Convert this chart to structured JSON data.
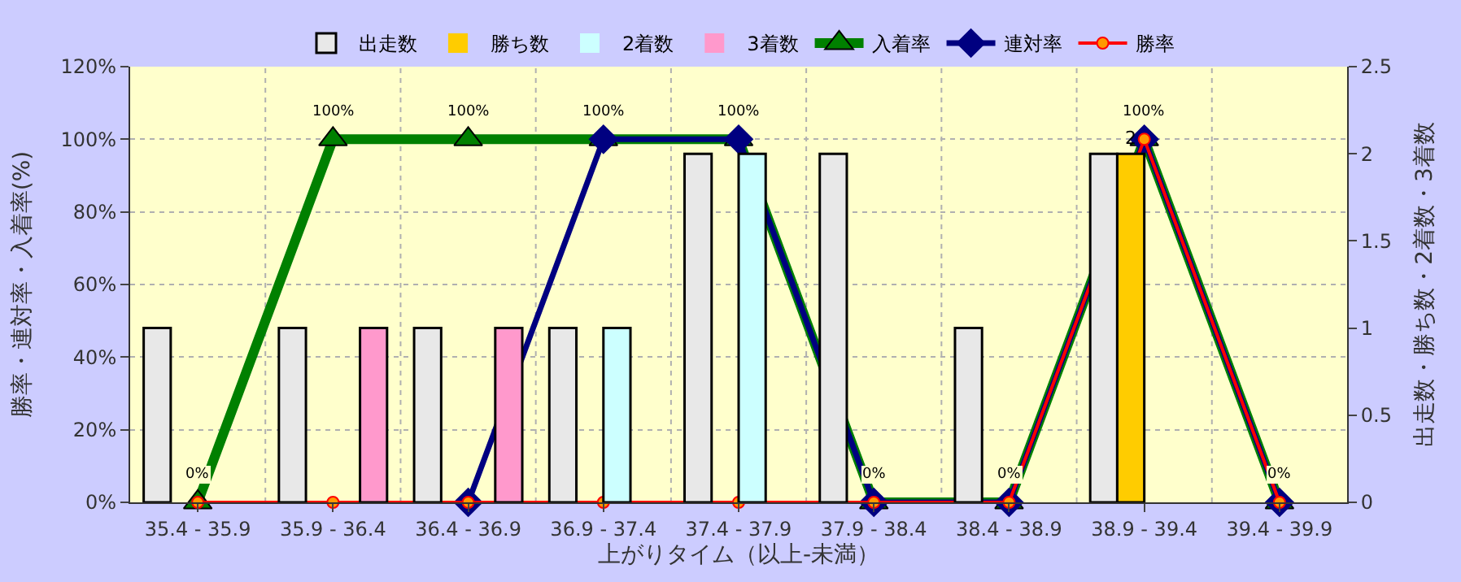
{
  "chart_data": {
    "type": "bar",
    "categories": [
      "35.4 - 35.9",
      "35.9 - 36.4",
      "36.4 - 36.9",
      "36.9 - 37.4",
      "37.4 - 37.9",
      "37.9 - 38.4",
      "38.4 - 38.9",
      "38.9 - 39.4",
      "39.4 - 39.9"
    ],
    "series": [
      {
        "name": "出走数",
        "axis": "y2",
        "color": "#e8e8e8",
        "values": [
          1,
          1,
          1,
          1,
          2,
          2,
          1,
          2,
          0
        ]
      },
      {
        "name": "勝ち数",
        "axis": "y2",
        "color": "#ffcc00",
        "values": [
          0,
          0,
          0,
          0,
          0,
          0,
          0,
          2,
          0
        ],
        "value_labels": [
          null,
          null,
          null,
          null,
          null,
          null,
          null,
          "2",
          null
        ]
      },
      {
        "name": "2着数",
        "axis": "y2",
        "color": "#ccffff",
        "values": [
          0,
          0,
          0,
          1,
          2,
          0,
          0,
          0,
          0
        ]
      },
      {
        "name": "3着数",
        "axis": "y2",
        "color": "#ff99cc",
        "values": [
          0,
          1,
          1,
          0,
          0,
          0,
          0,
          0,
          0
        ]
      },
      {
        "name": "入着率",
        "type": "line",
        "marker": "triangle",
        "color": "#008000",
        "values": [
          0,
          100,
          100,
          100,
          100,
          0,
          0,
          100,
          0
        ],
        "value_labels": [
          "0%",
          "100%",
          "100%",
          "100%",
          "100%",
          "0%",
          "0%",
          "100%",
          "0%"
        ]
      },
      {
        "name": "連対率",
        "type": "line",
        "marker": "diamond",
        "color": "#000080",
        "values": [
          null,
          null,
          0,
          100,
          100,
          0,
          0,
          100,
          0
        ]
      },
      {
        "name": "勝率",
        "type": "line",
        "marker": "circle",
        "color": "#ff0000",
        "values": [
          0,
          0,
          0,
          0,
          0,
          0,
          0,
          100,
          0
        ]
      }
    ],
    "xlabel": "上がりタイム（以上-未満）",
    "ylabel": "勝率・連対率・入着率(%)",
    "y2label": "出走数・勝ち数・2着数・3着数",
    "ylim": [
      0,
      120
    ],
    "yticks": [
      {
        "value": 0,
        "label": "0%"
      },
      {
        "value": 20,
        "label": "20%"
      },
      {
        "value": 40,
        "label": "40%"
      },
      {
        "value": 60,
        "label": "60%"
      },
      {
        "value": 80,
        "label": "80%"
      },
      {
        "value": 100,
        "label": "100%"
      },
      {
        "value": 120,
        "label": "120%"
      }
    ],
    "y2lim": [
      0,
      2.5
    ],
    "y2ticks": [
      0,
      0.5,
      1,
      1.5,
      2,
      2.5
    ],
    "grid": true,
    "legend": "top"
  }
}
